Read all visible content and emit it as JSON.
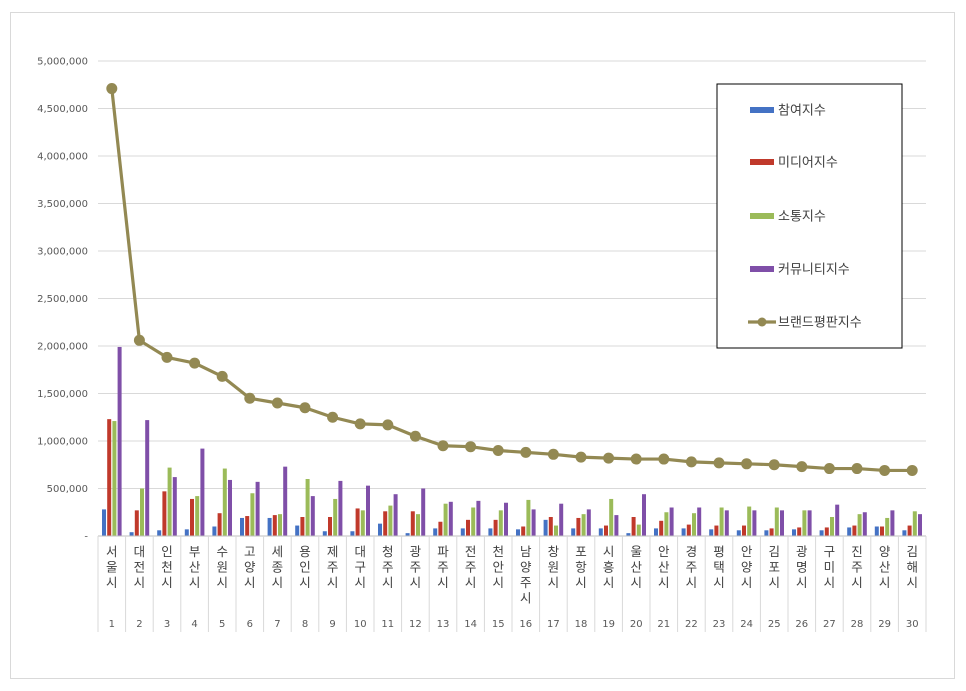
{
  "chart_data": {
    "type": "bar",
    "title": "",
    "xlabel": "",
    "ylabel": "",
    "ylim": [
      0,
      5000000
    ],
    "y_ticks": [
      "-",
      "500,000",
      "1,000,000",
      "1,500,000",
      "2,000,000",
      "2,500,000",
      "3,000,000",
      "3,500,000",
      "4,000,000",
      "4,500,000",
      "5,000,000"
    ],
    "grid": true,
    "legend_position": "top-right",
    "categories": [
      "서울시",
      "대전시",
      "인천시",
      "부산시",
      "수원시",
      "고양시",
      "세종시",
      "용인시",
      "제주시",
      "대구시",
      "청주시",
      "광주시",
      "파주시",
      "전주시",
      "천안시",
      "남양주시",
      "창원시",
      "포항시",
      "시흥시",
      "울산시",
      "안산시",
      "경주시",
      "평택시",
      "안양시",
      "김포시",
      "광명시",
      "구미시",
      "진주시",
      "양산시",
      "김해시"
    ],
    "ranks": [
      "1",
      "2",
      "3",
      "4",
      "5",
      "6",
      "7",
      "8",
      "9",
      "10",
      "11",
      "12",
      "13",
      "14",
      "15",
      "16",
      "17",
      "18",
      "19",
      "20",
      "21",
      "22",
      "23",
      "24",
      "25",
      "26",
      "27",
      "28",
      "29",
      "30"
    ],
    "series": [
      {
        "name": "참여지수",
        "type": "bar",
        "color": "#4472c4",
        "values": [
          280000,
          40000,
          60000,
          70000,
          100000,
          190000,
          190000,
          110000,
          50000,
          50000,
          130000,
          30000,
          80000,
          80000,
          80000,
          70000,
          170000,
          80000,
          80000,
          30000,
          80000,
          80000,
          70000,
          60000,
          60000,
          70000,
          60000,
          90000,
          100000,
          60000
        ]
      },
      {
        "name": "미디어지수",
        "type": "bar",
        "color": "#c0392b",
        "values": [
          1230000,
          270000,
          470000,
          390000,
          240000,
          210000,
          220000,
          200000,
          200000,
          290000,
          260000,
          260000,
          150000,
          170000,
          170000,
          100000,
          200000,
          190000,
          110000,
          200000,
          160000,
          120000,
          110000,
          110000,
          80000,
          90000,
          90000,
          110000,
          100000,
          110000
        ]
      },
      {
        "name": "소통지수",
        "type": "bar",
        "color": "#9bbb59",
        "values": [
          1210000,
          500000,
          720000,
          420000,
          710000,
          450000,
          230000,
          600000,
          390000,
          270000,
          320000,
          230000,
          340000,
          300000,
          270000,
          380000,
          110000,
          230000,
          390000,
          120000,
          250000,
          240000,
          300000,
          310000,
          300000,
          270000,
          200000,
          230000,
          190000,
          260000
        ]
      },
      {
        "name": "커뮤니티지수",
        "type": "bar",
        "color": "#7f4fa8",
        "values": [
          1990000,
          1220000,
          620000,
          920000,
          590000,
          570000,
          730000,
          420000,
          580000,
          530000,
          440000,
          500000,
          360000,
          370000,
          350000,
          280000,
          340000,
          280000,
          220000,
          440000,
          300000,
          300000,
          270000,
          270000,
          270000,
          270000,
          330000,
          250000,
          270000,
          230000
        ]
      },
      {
        "name": "브랜드평판지수",
        "type": "line",
        "color": "#938953",
        "values": [
          4710000,
          2060000,
          1880000,
          1820000,
          1680000,
          1450000,
          1400000,
          1350000,
          1250000,
          1180000,
          1170000,
          1050000,
          950000,
          940000,
          900000,
          880000,
          860000,
          830000,
          820000,
          810000,
          810000,
          780000,
          770000,
          760000,
          750000,
          730000,
          710000,
          710000,
          690000,
          690000
        ]
      }
    ]
  }
}
